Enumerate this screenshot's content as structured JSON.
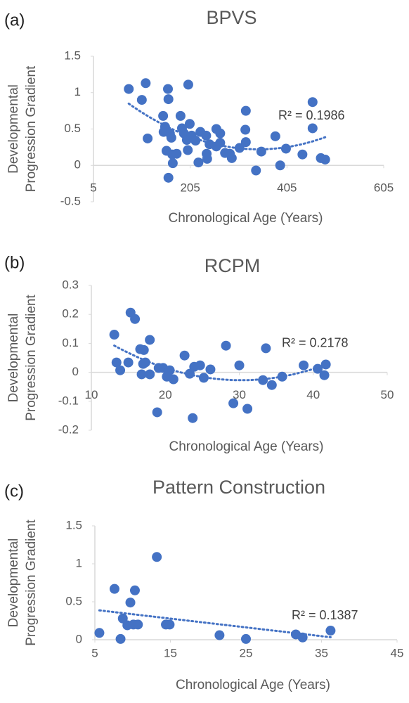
{
  "chart_data": [
    {
      "type": "scatter",
      "panel_label": "(a)",
      "title": "BPVS",
      "x_label": "Chronological Age (Years)",
      "y_label": [
        "Developmental",
        "Progression Gradient"
      ],
      "annotation": "R² = 0.1986",
      "trendline": "polynomial",
      "color": "#4472c4",
      "xlim": [
        5,
        605
      ],
      "xticks": [
        5,
        205,
        405,
        605
      ],
      "ylim": [
        -0.5,
        1.5
      ],
      "yticks": [
        -0.5,
        0,
        0.5,
        1,
        1.5
      ],
      "x": [
        78,
        113,
        105,
        117,
        159,
        160,
        149,
        153,
        150,
        163,
        166,
        156,
        160,
        168,
        169,
        177,
        201,
        185,
        188,
        192,
        198,
        204,
        208,
        216,
        200,
        222,
        226,
        238,
        239,
        240,
        245,
        259,
        267,
        267,
        259,
        277,
        287,
        291,
        307,
        319,
        320,
        320,
        341,
        352,
        381,
        391,
        403,
        437,
        458,
        458,
        475,
        484
      ],
      "values": [
        1.05,
        1.13,
        0.9,
        0.37,
        1.05,
        0.91,
        0.68,
        0.53,
        0.46,
        0.44,
        0.38,
        0.2,
        -0.17,
        0.15,
        0.03,
        0.16,
        1.11,
        0.68,
        0.51,
        0.44,
        0.35,
        0.57,
        0.41,
        0.34,
        0.21,
        0.04,
        0.46,
        0.41,
        0.16,
        0.09,
        0.29,
        0.5,
        0.44,
        0.31,
        0.26,
        0.17,
        0.16,
        0.1,
        0.24,
        0.49,
        0.75,
        0.32,
        -0.07,
        0.19,
        0.4,
        0,
        0.23,
        0.15,
        0.87,
        0.51,
        0.1,
        0.08
      ]
    },
    {
      "type": "scatter",
      "panel_label": "(b)",
      "title": "RCPM",
      "x_label": "Chronological Age (Years)",
      "y_label": [
        "Developmental",
        "Progression Gradient"
      ],
      "annotation": "R² = 0.2178",
      "trendline": "polynomial",
      "color": "#4472c4",
      "xlim": [
        10,
        50
      ],
      "xticks": [
        10,
        20,
        30,
        40,
        50
      ],
      "ylim": [
        -0.2,
        0.3
      ],
      "yticks": [
        -0.2,
        -0.1,
        0,
        0.1,
        0.2,
        0.3
      ],
      "x": [
        13.1,
        13.4,
        13.9,
        15,
        15.3,
        15.9,
        16.6,
        17.1,
        17.9,
        17,
        17.3,
        16.8,
        17.9,
        18.9,
        19.1,
        19.7,
        20.2,
        20.6,
        21.1,
        22.6,
        23.3,
        23.7,
        23.9,
        24.7,
        25.2,
        26.1,
        28.2,
        29.2,
        30,
        31.1,
        33.2,
        33.6,
        34.4,
        35.8,
        38.7,
        40.6,
        41.5,
        41.7
      ],
      "values": [
        0.13,
        0.034,
        0.007,
        0.034,
        0.206,
        0.184,
        0.08,
        0.077,
        0.112,
        0.029,
        0.034,
        -0.007,
        -0.007,
        -0.138,
        0.015,
        0.015,
        -0.015,
        0.007,
        -0.024,
        0.058,
        -0.005,
        -0.158,
        0.019,
        0.024,
        -0.019,
        0.01,
        0.092,
        -0.107,
        0.024,
        -0.126,
        -0.027,
        0.083,
        -0.044,
        -0.015,
        0.024,
        0.012,
        -0.01,
        0.027
      ]
    },
    {
      "type": "scatter",
      "panel_label": "(c)",
      "title": "Pattern Construction",
      "x_label": "Chronological Age (Years)",
      "y_label": [
        "Developmental",
        "Progression Gradient"
      ],
      "annotation": "R² = 0.1387",
      "trendline": "linear",
      "color": "#4472c4",
      "xlim": [
        5,
        45
      ],
      "xticks": [
        5,
        15,
        25,
        35,
        45
      ],
      "ylim": [
        0,
        1.5
      ],
      "yticks": [
        0,
        0.5,
        1,
        1.5
      ],
      "x": [
        5.6,
        7.6,
        8.4,
        8.7,
        9.3,
        9.7,
        10.1,
        10.3,
        10.7,
        13.2,
        14.4,
        14.9,
        21.5,
        25,
        31.6,
        32.5,
        36.2
      ],
      "values": [
        0.09,
        0.67,
        0.01,
        0.28,
        0.19,
        0.49,
        0.2,
        0.65,
        0.2,
        1.09,
        0.2,
        0.2,
        0.06,
        0.01,
        0.07,
        0.03,
        0.12
      ]
    }
  ]
}
